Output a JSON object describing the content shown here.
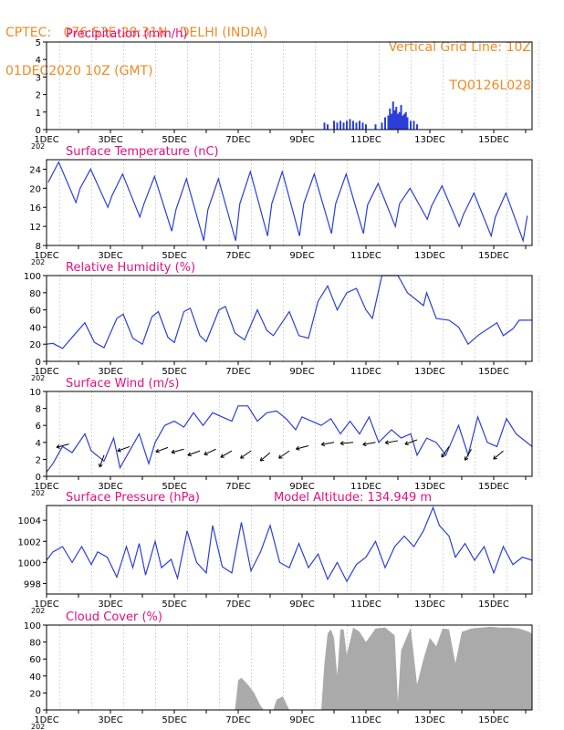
{
  "header": {
    "line1_left": "CPTEC:   076:53E-28:31N   DELHI (INDIA)",
    "line2_left": "01DEC2020 10Z (GMT)",
    "line1_right": "Vertical Grid Line: 10Z",
    "line2_right": "TQ0126L028"
  },
  "colors": {
    "header": "#f08a24",
    "title": "#e0107f",
    "line": "#2b3fd8",
    "cloud": "#aaaaaa",
    "axis": "#000000"
  },
  "x_axis": {
    "tick_labels": [
      "1DEC",
      "3DEC",
      "5DEC",
      "7DEC",
      "9DEC",
      "11DEC",
      "13DEC",
      "15DEC"
    ],
    "tick_days": [
      1,
      3,
      5,
      7,
      9,
      11,
      13,
      15
    ],
    "year_stub": "202",
    "range_days": [
      1,
      16.2
    ]
  },
  "chart_data": [
    {
      "id": "precip",
      "type": "bar",
      "title": "Precipitation (mm/h)",
      "ylim": [
        0,
        5
      ],
      "yticks": [
        "0",
        "1",
        "2",
        "3",
        "4",
        "5"
      ],
      "x_days": [
        9.7,
        9.8,
        10.0,
        10.1,
        10.2,
        10.3,
        10.4,
        10.5,
        10.6,
        10.7,
        10.8,
        10.9,
        11.0,
        11.3,
        11.5,
        11.6,
        11.7,
        11.75,
        11.8,
        11.85,
        11.9,
        11.95,
        12.0,
        12.05,
        12.1,
        12.15,
        12.2,
        12.25,
        12.3,
        12.4,
        12.5,
        12.6
      ],
      "values": [
        0.4,
        0.3,
        0.5,
        0.4,
        0.5,
        0.4,
        0.5,
        0.6,
        0.5,
        0.4,
        0.5,
        0.4,
        0.3,
        0.3,
        0.4,
        0.7,
        0.8,
        1.2,
        0.9,
        1.6,
        1.1,
        1.3,
        0.9,
        1.0,
        1.4,
        0.8,
        0.9,
        1.0,
        0.7,
        0.5,
        0.5,
        0.3
      ]
    },
    {
      "id": "temp",
      "type": "line",
      "title": "Surface Temperature (nC)",
      "ylim": [
        8,
        26
      ],
      "yticks": [
        "8",
        "12",
        "16",
        "20",
        "24"
      ],
      "series_name": "",
      "cycles": {
        "max": [
          25.5,
          24,
          23,
          22.5,
          22,
          22,
          23.5,
          23.5,
          23,
          23,
          21,
          20,
          20.5,
          19,
          19,
          18.5
        ],
        "min": [
          17,
          16,
          14,
          11,
          9,
          9,
          10,
          10,
          10.5,
          10.5,
          12,
          13.5,
          12,
          10,
          9,
          10
        ]
      }
    },
    {
      "id": "rh",
      "type": "line",
      "title": "Relative Humidity (%)",
      "ylim": [
        0,
        100
      ],
      "yticks": [
        "0",
        "20",
        "40",
        "60",
        "80",
        "100"
      ],
      "points": [
        [
          1.0,
          20
        ],
        [
          1.2,
          21
        ],
        [
          1.5,
          15
        ],
        [
          1.8,
          28
        ],
        [
          2.2,
          45
        ],
        [
          2.5,
          22
        ],
        [
          2.8,
          16
        ],
        [
          3.2,
          50
        ],
        [
          3.4,
          55
        ],
        [
          3.7,
          27
        ],
        [
          4.0,
          20
        ],
        [
          4.3,
          52
        ],
        [
          4.5,
          58
        ],
        [
          4.8,
          28
        ],
        [
          5.0,
          22
        ],
        [
          5.3,
          58
        ],
        [
          5.5,
          62
        ],
        [
          5.8,
          30
        ],
        [
          6.0,
          23
        ],
        [
          6.4,
          60
        ],
        [
          6.6,
          64
        ],
        [
          6.9,
          33
        ],
        [
          7.2,
          25
        ],
        [
          7.6,
          60
        ],
        [
          7.9,
          36
        ],
        [
          8.1,
          30
        ],
        [
          8.6,
          58
        ],
        [
          8.9,
          30
        ],
        [
          9.2,
          27
        ],
        [
          9.5,
          70
        ],
        [
          9.8,
          88
        ],
        [
          10.1,
          60
        ],
        [
          10.4,
          80
        ],
        [
          10.7,
          85
        ],
        [
          11.0,
          60
        ],
        [
          11.2,
          50
        ],
        [
          11.5,
          100
        ],
        [
          12.0,
          100
        ],
        [
          12.3,
          80
        ],
        [
          12.8,
          65
        ],
        [
          12.9,
          80
        ],
        [
          13.2,
          50
        ],
        [
          13.6,
          48
        ],
        [
          13.9,
          40
        ],
        [
          14.2,
          20
        ],
        [
          14.5,
          30
        ],
        [
          14.9,
          40
        ],
        [
          15.1,
          45
        ],
        [
          15.3,
          30
        ],
        [
          15.6,
          38
        ],
        [
          15.8,
          48
        ],
        [
          16.2,
          48
        ]
      ]
    },
    {
      "id": "wind",
      "type": "line",
      "title": "Surface Wind (m/s)",
      "ylim": [
        0,
        10
      ],
      "yticks": [
        "0",
        "2",
        "4",
        "6",
        "8",
        "10"
      ],
      "points": [
        [
          1.0,
          0.5
        ],
        [
          1.2,
          1.5
        ],
        [
          1.5,
          3.5
        ],
        [
          1.8,
          2.8
        ],
        [
          2.2,
          5
        ],
        [
          2.4,
          3
        ],
        [
          2.8,
          1.8
        ],
        [
          3.1,
          4.5
        ],
        [
          3.3,
          1
        ],
        [
          3.6,
          3
        ],
        [
          3.9,
          5
        ],
        [
          4.2,
          1.5
        ],
        [
          4.4,
          4
        ],
        [
          4.7,
          6
        ],
        [
          5.0,
          6.5
        ],
        [
          5.3,
          5.8
        ],
        [
          5.6,
          7.5
        ],
        [
          5.9,
          6
        ],
        [
          6.2,
          7.5
        ],
        [
          6.5,
          7
        ],
        [
          6.8,
          6.5
        ],
        [
          7.0,
          8.3
        ],
        [
          7.3,
          8.3
        ],
        [
          7.6,
          6.5
        ],
        [
          7.9,
          7.5
        ],
        [
          8.2,
          7.7
        ],
        [
          8.5,
          6.8
        ],
        [
          8.8,
          5.5
        ],
        [
          9.0,
          7
        ],
        [
          9.3,
          6.5
        ],
        [
          9.6,
          6
        ],
        [
          9.9,
          6.8
        ],
        [
          10.2,
          5
        ],
        [
          10.5,
          6.5
        ],
        [
          10.8,
          5
        ],
        [
          11.1,
          7
        ],
        [
          11.4,
          4
        ],
        [
          11.8,
          5.5
        ],
        [
          12.1,
          4.5
        ],
        [
          12.4,
          5
        ],
        [
          12.6,
          2.5
        ],
        [
          12.9,
          4.5
        ],
        [
          13.2,
          4
        ],
        [
          13.5,
          2.5
        ],
        [
          13.9,
          6
        ],
        [
          14.2,
          2.5
        ],
        [
          14.5,
          7
        ],
        [
          14.8,
          4
        ],
        [
          15.1,
          3.5
        ],
        [
          15.4,
          6.8
        ],
        [
          15.7,
          5
        ],
        [
          16.2,
          3.5
        ]
      ],
      "arrows": [
        [
          1.7,
          3.8,
          195
        ],
        [
          2.8,
          2.5,
          250
        ],
        [
          3.6,
          3.5,
          200
        ],
        [
          4.8,
          3.4,
          200
        ],
        [
          5.3,
          3.2,
          195
        ],
        [
          5.8,
          3.0,
          200
        ],
        [
          6.3,
          3.2,
          205
        ],
        [
          6.8,
          3.0,
          210
        ],
        [
          7.4,
          3.0,
          215
        ],
        [
          8.0,
          2.8,
          220
        ],
        [
          8.6,
          3.0,
          215
        ],
        [
          9.2,
          3.6,
          195
        ],
        [
          10.0,
          4.0,
          190
        ],
        [
          10.6,
          4.0,
          185
        ],
        [
          11.3,
          4.0,
          190
        ],
        [
          12.0,
          4.2,
          190
        ],
        [
          12.6,
          4.3,
          200
        ],
        [
          13.6,
          3.5,
          235
        ],
        [
          14.3,
          3.2,
          240
        ],
        [
          15.3,
          3.0,
          220
        ]
      ]
    },
    {
      "id": "pres",
      "type": "line",
      "title": "Surface Pressure (hPa)",
      "annotation": "Model Altitude: 134.949 m",
      "ylim": [
        997,
        1005.4
      ],
      "yticks": [
        "998",
        "1000",
        "1002",
        "1004"
      ],
      "points": [
        [
          1.0,
          1000.2
        ],
        [
          1.2,
          1001
        ],
        [
          1.5,
          1001.5
        ],
        [
          1.8,
          1000
        ],
        [
          2.1,
          1001.5
        ],
        [
          2.4,
          999.8
        ],
        [
          2.6,
          1001
        ],
        [
          2.9,
          1000.5
        ],
        [
          3.2,
          998.6
        ],
        [
          3.5,
          1001.5
        ],
        [
          3.7,
          999.5
        ],
        [
          3.9,
          1001.8
        ],
        [
          4.1,
          998.8
        ],
        [
          4.4,
          1002
        ],
        [
          4.6,
          999.5
        ],
        [
          4.9,
          1000.3
        ],
        [
          5.1,
          998.5
        ],
        [
          5.4,
          1003
        ],
        [
          5.7,
          1000
        ],
        [
          6.0,
          999
        ],
        [
          6.2,
          1003.5
        ],
        [
          6.5,
          999.6
        ],
        [
          6.8,
          999
        ],
        [
          7.1,
          1003.8
        ],
        [
          7.4,
          999.2
        ],
        [
          7.7,
          1001
        ],
        [
          8.0,
          1003.5
        ],
        [
          8.3,
          1000
        ],
        [
          8.6,
          999.5
        ],
        [
          8.9,
          1001.8
        ],
        [
          9.2,
          999.5
        ],
        [
          9.5,
          1000.8
        ],
        [
          9.8,
          998.4
        ],
        [
          10.1,
          1000
        ],
        [
          10.4,
          998.2
        ],
        [
          10.7,
          999.8
        ],
        [
          11.0,
          1000.5
        ],
        [
          11.3,
          1002
        ],
        [
          11.6,
          999.5
        ],
        [
          11.9,
          1001.5
        ],
        [
          12.2,
          1002.5
        ],
        [
          12.5,
          1001.5
        ],
        [
          12.8,
          1003
        ],
        [
          13.1,
          1005.2
        ],
        [
          13.3,
          1003.5
        ],
        [
          13.6,
          1002.5
        ],
        [
          13.8,
          1000.5
        ],
        [
          14.1,
          1001.8
        ],
        [
          14.4,
          1000.2
        ],
        [
          14.7,
          1001.5
        ],
        [
          15.0,
          999
        ],
        [
          15.3,
          1001.5
        ],
        [
          15.6,
          999.8
        ],
        [
          15.9,
          1000.5
        ],
        [
          16.2,
          1000.2
        ]
      ]
    },
    {
      "id": "cloud",
      "type": "area",
      "title": "Cloud Cover (%)",
      "ylim": [
        0,
        100
      ],
      "yticks": [
        "0",
        "20",
        "40",
        "60",
        "80",
        "100"
      ],
      "points": [
        [
          6.9,
          0
        ],
        [
          7.0,
          35
        ],
        [
          7.1,
          38
        ],
        [
          7.3,
          30
        ],
        [
          7.5,
          20
        ],
        [
          7.7,
          5
        ],
        [
          7.8,
          0
        ],
        [
          8.1,
          0
        ],
        [
          8.2,
          12
        ],
        [
          8.4,
          16
        ],
        [
          8.5,
          8
        ],
        [
          8.6,
          0
        ],
        [
          9.6,
          0
        ],
        [
          9.7,
          55
        ],
        [
          9.8,
          90
        ],
        [
          9.9,
          95
        ],
        [
          10.0,
          85
        ],
        [
          10.1,
          40
        ],
        [
          10.2,
          95
        ],
        [
          10.3,
          95
        ],
        [
          10.4,
          65
        ],
        [
          10.6,
          97
        ],
        [
          10.8,
          92
        ],
        [
          11.0,
          80
        ],
        [
          11.3,
          96
        ],
        [
          11.6,
          97
        ],
        [
          11.9,
          88
        ],
        [
          12.0,
          10
        ],
        [
          12.1,
          70
        ],
        [
          12.4,
          97
        ],
        [
          12.6,
          30
        ],
        [
          12.8,
          60
        ],
        [
          13.0,
          85
        ],
        [
          13.2,
          75
        ],
        [
          13.4,
          96
        ],
        [
          13.6,
          95
        ],
        [
          13.8,
          55
        ],
        [
          14.0,
          92
        ],
        [
          14.3,
          96
        ],
        [
          14.6,
          97
        ],
        [
          14.9,
          98
        ],
        [
          15.2,
          97
        ],
        [
          15.5,
          97
        ],
        [
          15.8,
          96
        ],
        [
          16.1,
          92
        ],
        [
          16.2,
          90
        ]
      ]
    }
  ]
}
